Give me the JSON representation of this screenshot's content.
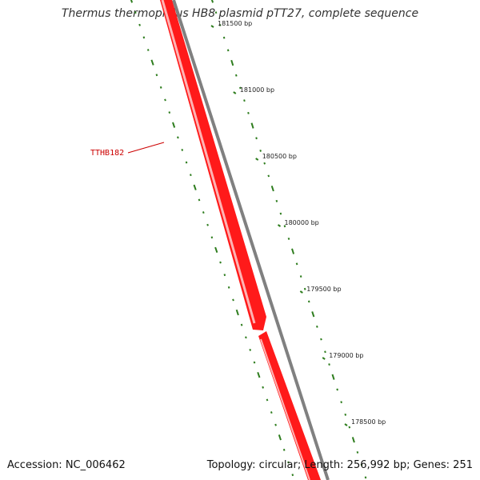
{
  "title": "Thermus thermophilus HB8 plasmid pTT27, complete sequence",
  "footer": {
    "accession": "Accession: NC_006462",
    "summary": "Topology: circular; Length: 256,992 bp; Genes: 251"
  },
  "colors": {
    "gene": "#ff1a1a",
    "gene_highlight": "#ffb3b3",
    "backbone": "#808080",
    "tick": "#2e7d1e",
    "label": "#cc0000"
  },
  "ticks": [
    {
      "label": "181500 bp",
      "value": 181500
    },
    {
      "label": "181000 bp",
      "value": 181000
    },
    {
      "label": "180500 bp",
      "value": 180500
    },
    {
      "label": "180000 bp",
      "value": 180000
    },
    {
      "label": "179500 bp",
      "value": 179500
    },
    {
      "label": "179000 bp",
      "value": 179000
    },
    {
      "label": "178500 bp",
      "value": 178500
    }
  ],
  "genes": [
    {
      "label": "TTHB182"
    }
  ]
}
